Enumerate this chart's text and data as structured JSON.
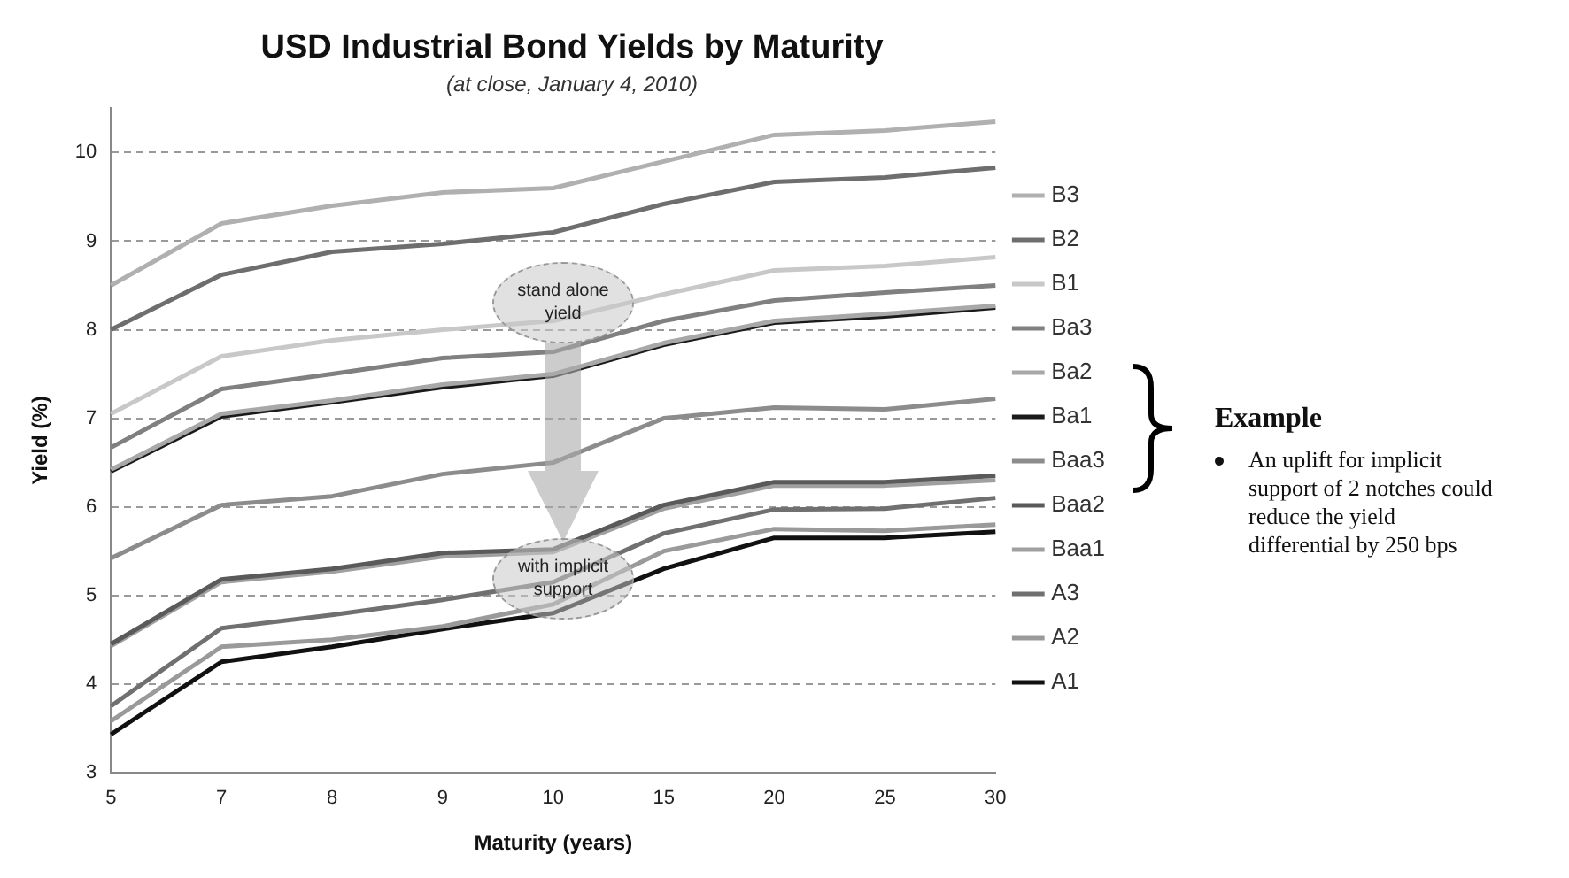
{
  "chart_data": {
    "type": "line",
    "title": "USD Industrial Bond Yields by Maturity",
    "subtitle": "(at close, January 4, 2010)",
    "xlabel": "Maturity (years)",
    "ylabel": "Yield (%)",
    "categories": [
      "5",
      "7",
      "8",
      "9",
      "10",
      "15",
      "20",
      "25",
      "30"
    ],
    "series": [
      {
        "name": "B3",
        "color": "#b0b0b0",
        "values": [
          8.5,
          9.2,
          9.4,
          9.55,
          9.6,
          9.9,
          10.2,
          10.25,
          10.35
        ]
      },
      {
        "name": "B2",
        "color": "#6e6e6e",
        "values": [
          8.0,
          8.62,
          8.88,
          8.97,
          9.1,
          9.42,
          9.67,
          9.72,
          9.83
        ]
      },
      {
        "name": "B1",
        "color": "#c8c8c8",
        "values": [
          7.05,
          7.7,
          7.88,
          8.0,
          8.1,
          8.4,
          8.67,
          8.72,
          8.82
        ]
      },
      {
        "name": "Ba3",
        "color": "#808080",
        "values": [
          6.67,
          7.33,
          7.5,
          7.68,
          7.75,
          8.1,
          8.33,
          8.42,
          8.5
        ]
      },
      {
        "name": "Ba2",
        "color": "#a8a8a8",
        "values": [
          6.42,
          7.05,
          7.2,
          7.38,
          7.5,
          7.85,
          8.1,
          8.18,
          8.27
        ]
      },
      {
        "name": "Ba1",
        "color": "#1a1a1a",
        "values": [
          6.4,
          7.02,
          7.18,
          7.35,
          7.48,
          7.83,
          8.08,
          8.15,
          8.25
        ]
      },
      {
        "name": "Baa3",
        "color": "#8c8c8c",
        "values": [
          5.42,
          6.02,
          6.12,
          6.37,
          6.5,
          7.0,
          7.12,
          7.1,
          7.22
        ]
      },
      {
        "name": "Baa2",
        "color": "#5a5a5a",
        "values": [
          4.45,
          5.18,
          5.3,
          5.48,
          5.52,
          6.02,
          6.28,
          6.28,
          6.35
        ]
      },
      {
        "name": "Baa1",
        "color": "#a0a0a0",
        "values": [
          4.43,
          5.15,
          5.27,
          5.44,
          5.49,
          5.98,
          6.24,
          6.24,
          6.3
        ]
      },
      {
        "name": "A3",
        "color": "#707070",
        "values": [
          3.75,
          4.63,
          4.78,
          4.95,
          5.15,
          5.7,
          5.97,
          5.98,
          6.1
        ]
      },
      {
        "name": "A2",
        "color": "#9a9a9a",
        "values": [
          3.58,
          4.42,
          4.5,
          4.65,
          4.9,
          5.5,
          5.75,
          5.73,
          5.8
        ]
      },
      {
        "name": "A1",
        "color": "#111111",
        "values": [
          3.43,
          4.25,
          4.42,
          4.62,
          4.8,
          5.3,
          5.65,
          5.65,
          5.72
        ]
      }
    ],
    "ylim": [
      3,
      10.5
    ],
    "yticks": [
      3,
      4,
      5,
      6,
      7,
      8,
      9,
      10
    ],
    "grid": "y",
    "legend": "right",
    "marker": "none",
    "line_style": "solid",
    "annotations": [
      "stand alone yield",
      "with implicit support",
      "Example",
      "An uplift for implicit support of 2 notches could reduce the yield differential by 250 bps"
    ]
  }
}
